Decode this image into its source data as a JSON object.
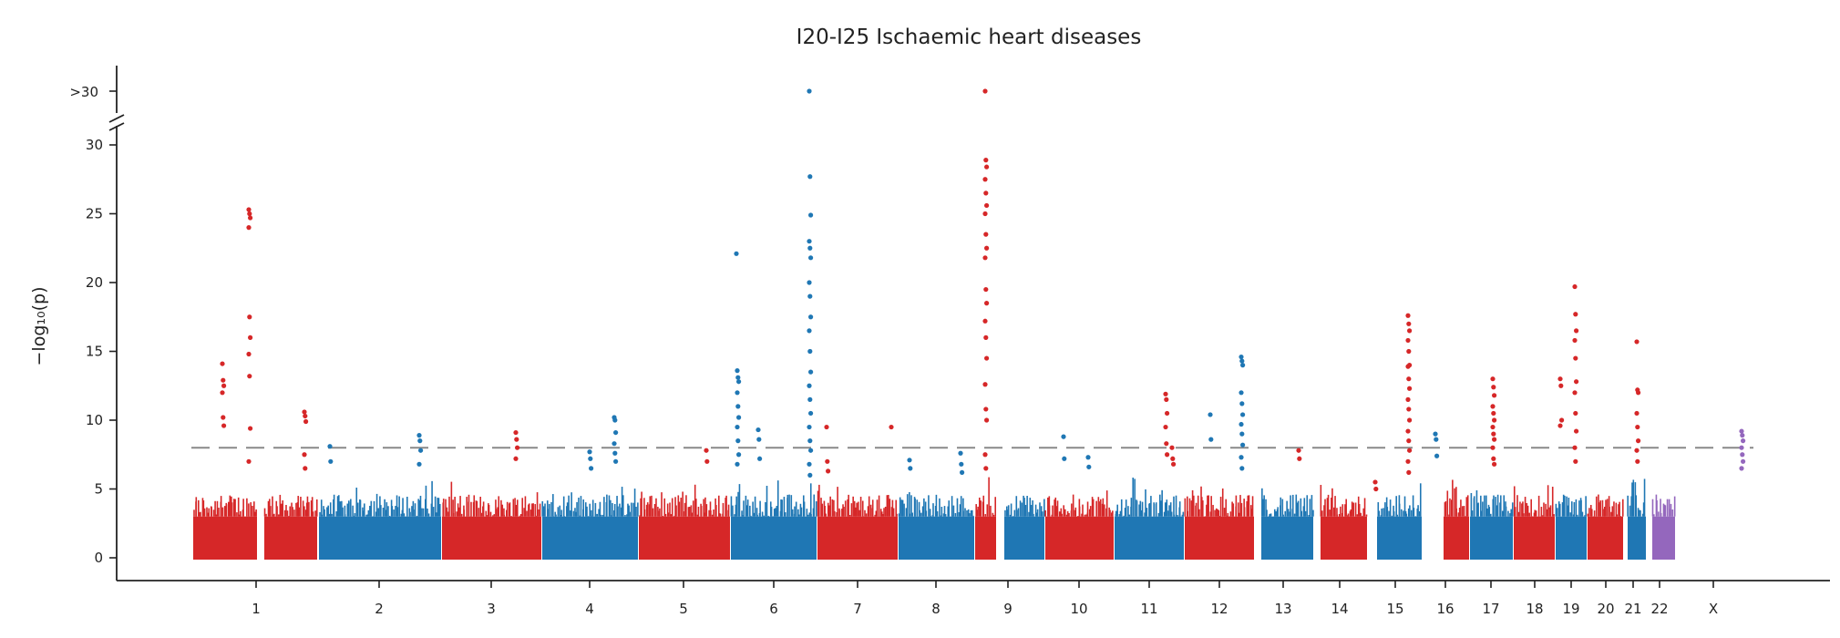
{
  "chart_data": {
    "type": "scatter",
    "subtype": "manhattan",
    "title": "I20-I25 Ischaemic heart diseases",
    "ylabel": "−log₁₀(p)",
    "xlabel": "",
    "ylim": [
      0,
      30
    ],
    "yticks": [
      0,
      5,
      10,
      15,
      20,
      25,
      30
    ],
    "broken_axis_label": ">30",
    "threshold": 8,
    "threshold_style": "dashed grey",
    "grid": false,
    "legend": "none",
    "colors": {
      "red": "#d62728",
      "blue": "#1f77b4",
      "purple": "#9467bd",
      "threshold": "#888888",
      "axis": "#222222"
    },
    "chromosomes": [
      {
        "label": "1",
        "color": "red"
      },
      {
        "label": "",
        "color": "red"
      },
      {
        "label": "2",
        "color": "blue"
      },
      {
        "label": "3",
        "color": "red"
      },
      {
        "label": "4",
        "color": "blue"
      },
      {
        "label": "5",
        "color": "red"
      },
      {
        "label": "6",
        "color": "blue"
      },
      {
        "label": "7",
        "color": "red"
      },
      {
        "label": "8",
        "color": "blue"
      },
      {
        "label": "9",
        "color": "red"
      },
      {
        "label": "10",
        "color": "blue"
      },
      {
        "label": "11",
        "color": "red"
      },
      {
        "label": "12",
        "color": "blue"
      },
      {
        "label": "13",
        "color": "red"
      },
      {
        "label": "14",
        "color": "blue"
      },
      {
        "label": "15",
        "color": "red"
      },
      {
        "label": "16",
        "color": "blue"
      },
      {
        "label": "17",
        "color": "red"
      },
      {
        "label": "18",
        "color": "blue"
      },
      {
        "label": "19",
        "color": "red"
      },
      {
        "label": "20",
        "color": "blue"
      },
      {
        "label": "21",
        "color": "red"
      },
      {
        "label": "22",
        "color": "blue"
      },
      {
        "label": "X",
        "color": "purple"
      }
    ],
    "peaks": [
      {
        "chrom": "1",
        "values": [
          14.1,
          12.9,
          12.5,
          12.0,
          10.2,
          9.6
        ]
      },
      {
        "chrom": "1",
        "values": [
          25.3,
          25.0,
          24.7,
          24.0,
          17.5,
          16.0,
          14.8,
          13.2,
          9.4,
          7.0
        ]
      },
      {
        "chrom": "1",
        "values": [
          10.6,
          10.3,
          9.9,
          7.5,
          6.5
        ]
      },
      {
        "chrom": "2",
        "values": [
          8.1,
          7.0
        ]
      },
      {
        "chrom": "2",
        "values": [
          8.9,
          8.5,
          7.8,
          6.8
        ]
      },
      {
        "chrom": "3",
        "values": [
          9.1,
          8.6,
          8.0,
          7.2
        ]
      },
      {
        "chrom": "4",
        "values": [
          7.7,
          7.2,
          6.5
        ]
      },
      {
        "chrom": "4",
        "values": [
          10.2,
          10.0,
          9.1,
          8.3,
          7.6,
          7.0
        ]
      },
      {
        "chrom": "5",
        "values": [
          7.8,
          7.0
        ]
      },
      {
        "chrom": "6",
        "values": [
          22.1
        ]
      },
      {
        "chrom": "6",
        "values": [
          13.6,
          13.1,
          12.8,
          12.0,
          11.0,
          10.2,
          9.5,
          8.5,
          7.5,
          6.8
        ]
      },
      {
        "chrom": "6",
        "values": [
          9.3,
          8.6,
          7.2
        ]
      },
      {
        "chrom": "6",
        "values": [
          30.5,
          27.7,
          24.9,
          23.0,
          22.5,
          21.8,
          20.0,
          19.0,
          17.5,
          16.5,
          15.0,
          13.5,
          12.5,
          11.5,
          10.5,
          9.5,
          8.5,
          7.8,
          6.8,
          6.0
        ]
      },
      {
        "chrom": "7",
        "values": [
          9.5,
          7.0,
          6.3
        ]
      },
      {
        "chrom": "7",
        "values": [
          9.5
        ]
      },
      {
        "chrom": "8",
        "values": [
          7.1,
          6.5
        ]
      },
      {
        "chrom": "8",
        "values": [
          7.6,
          6.8,
          6.2
        ]
      },
      {
        "chrom": "9",
        "values": [
          30.5,
          28.9,
          28.4,
          27.5,
          26.5,
          25.6,
          25.0,
          23.5,
          22.5,
          21.8,
          19.5,
          18.5,
          17.2,
          16.0,
          14.5,
          12.6,
          10.8,
          10.0,
          7.5,
          6.5
        ]
      },
      {
        "chrom": "10",
        "values": [
          8.8,
          7.2
        ]
      },
      {
        "chrom": "10",
        "values": [
          7.3,
          6.6
        ]
      },
      {
        "chrom": "11",
        "values": [
          11.9,
          11.5,
          10.5,
          9.5,
          8.3,
          7.5
        ]
      },
      {
        "chrom": "11",
        "values": [
          8.0,
          7.2,
          6.8
        ]
      },
      {
        "chrom": "12",
        "values": [
          10.4,
          8.6
        ]
      },
      {
        "chrom": "12",
        "values": [
          14.6,
          14.3,
          14.0,
          12.0,
          11.2,
          10.4,
          9.7,
          9.0,
          8.2,
          7.3,
          6.5
        ]
      },
      {
        "chrom": "13",
        "values": [
          7.8,
          7.2
        ]
      },
      {
        "chrom": "15",
        "values": [
          5.5,
          5.0
        ]
      },
      {
        "chrom": "15",
        "values": [
          17.6,
          17.0,
          16.5,
          15.8,
          15.0,
          14.0,
          13.9,
          13.0,
          12.3,
          11.5,
          10.8,
          10.0,
          9.2,
          8.5,
          7.8,
          7.0,
          6.2
        ]
      },
      {
        "chrom": "16",
        "values": [
          9.0,
          8.6,
          7.4
        ]
      },
      {
        "chrom": "17",
        "values": [
          13.0,
          12.4,
          11.8,
          11.0,
          10.5,
          10.0,
          9.5,
          9.0,
          8.6,
          8.0,
          7.2,
          6.8
        ]
      },
      {
        "chrom": "19",
        "values": [
          13.0,
          12.5,
          10.0,
          9.6
        ]
      },
      {
        "chrom": "19",
        "values": [
          19.7,
          17.7,
          16.5,
          15.8,
          14.5,
          12.8,
          12.0,
          10.5,
          9.2,
          8.0,
          7.0
        ]
      },
      {
        "chrom": "21",
        "values": [
          15.7,
          12.2,
          12.0,
          10.5,
          9.5,
          8.5,
          7.8,
          7.0
        ]
      },
      {
        "chrom": "X",
        "values": [
          9.2,
          8.9,
          8.5,
          8.0,
          7.5,
          7.0,
          6.5
        ]
      }
    ]
  }
}
